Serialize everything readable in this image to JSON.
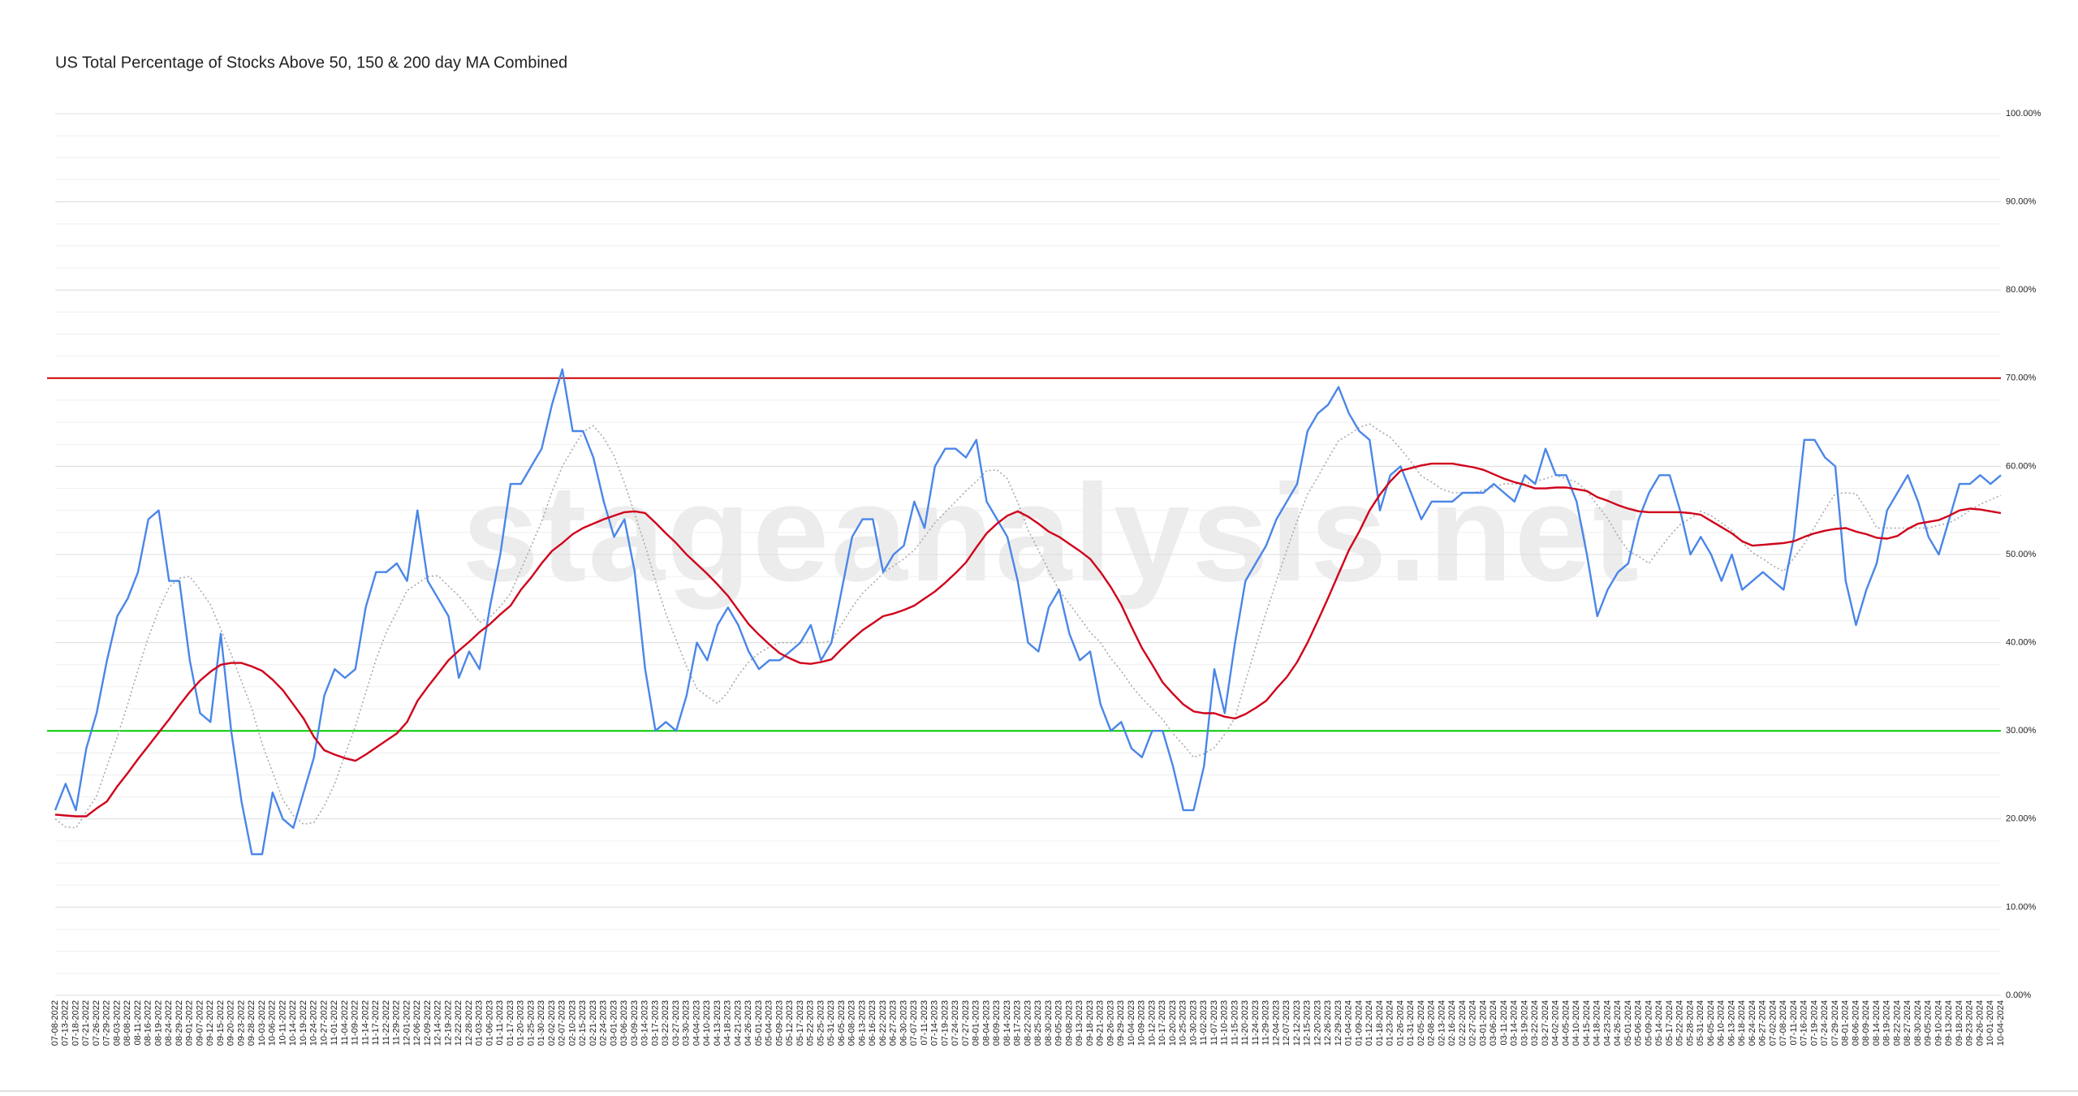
{
  "chart_data": {
    "type": "line",
    "title": "US Total Percentage of Stocks Above 50, 150 & 200 day MA Combined",
    "watermark": "stageanalysis.net",
    "categories": [
      "07-08-2022",
      "07-13-2022",
      "07-18-2022",
      "07-21-2022",
      "07-26-2022",
      "07-29-2022",
      "08-03-2022",
      "08-08-2022",
      "08-11-2022",
      "08-16-2022",
      "08-19-2022",
      "08-24-2022",
      "08-29-2022",
      "09-01-2022",
      "09-07-2022",
      "09-12-2022",
      "09-15-2022",
      "09-20-2022",
      "09-23-2022",
      "09-28-2022",
      "10-03-2022",
      "10-06-2022",
      "10-11-2022",
      "10-14-2022",
      "10-19-2022",
      "10-24-2022",
      "10-27-2022",
      "11-01-2022",
      "11-04-2022",
      "11-09-2022",
      "11-14-2022",
      "11-17-2022",
      "11-22-2022",
      "11-29-2022",
      "12-01-2022",
      "12-06-2022",
      "12-09-2022",
      "12-14-2022",
      "12-19-2022",
      "12-22-2022",
      "12-28-2022",
      "01-03-2023",
      "01-06-2023",
      "01-11-2023",
      "01-17-2023",
      "01-20-2023",
      "01-25-2023",
      "01-30-2023",
      "02-02-2023",
      "02-07-2023",
      "02-10-2023",
      "02-15-2023",
      "02-21-2023",
      "02-24-2023",
      "03-01-2023",
      "03-06-2023",
      "03-09-2023",
      "03-14-2023",
      "03-17-2023",
      "03-22-2023",
      "03-27-2023",
      "03-30-2023",
      "04-04-2023",
      "04-10-2023",
      "04-13-2023",
      "04-18-2023",
      "04-21-2023",
      "04-26-2023",
      "05-01-2023",
      "05-04-2023",
      "05-09-2023",
      "05-12-2023",
      "05-17-2023",
      "05-22-2023",
      "05-25-2023",
      "05-31-2023",
      "06-05-2023",
      "06-08-2023",
      "06-13-2023",
      "06-16-2023",
      "06-22-2023",
      "06-27-2023",
      "06-30-2023",
      "07-07-2023",
      "07-11-2023",
      "07-14-2023",
      "07-19-2023",
      "07-24-2023",
      "07-27-2023",
      "08-01-2023",
      "08-04-2023",
      "08-09-2023",
      "08-14-2023",
      "08-17-2023",
      "08-22-2023",
      "08-25-2023",
      "08-30-2023",
      "09-05-2023",
      "09-08-2023",
      "09-13-2023",
      "09-18-2023",
      "09-21-2023",
      "09-26-2023",
      "09-29-2023",
      "10-04-2023",
      "10-09-2023",
      "10-12-2023",
      "10-17-2023",
      "10-20-2023",
      "10-25-2023",
      "10-30-2023",
      "11-02-2023",
      "11-07-2023",
      "11-10-2023",
      "11-15-2023",
      "11-20-2023",
      "11-24-2023",
      "11-29-2023",
      "12-04-2023",
      "12-07-2023",
      "12-12-2023",
      "12-15-2023",
      "12-20-2023",
      "12-26-2023",
      "12-29-2023",
      "01-04-2024",
      "01-09-2024",
      "01-12-2024",
      "01-18-2024",
      "01-23-2024",
      "01-26-2024",
      "01-31-2024",
      "02-05-2024",
      "02-08-2024",
      "02-13-2024",
      "02-16-2024",
      "02-22-2024",
      "02-27-2024",
      "03-01-2024",
      "03-06-2024",
      "03-11-2024",
      "03-14-2024",
      "03-19-2024",
      "03-22-2024",
      "03-27-2024",
      "04-02-2024",
      "04-05-2024",
      "04-10-2024",
      "04-15-2024",
      "04-18-2024",
      "04-23-2024",
      "04-26-2024",
      "05-01-2024",
      "05-06-2024",
      "05-09-2024",
      "05-14-2024",
      "05-17-2024",
      "05-22-2024",
      "05-28-2024",
      "05-31-2024",
      "06-05-2024",
      "06-10-2024",
      "06-13-2024",
      "06-18-2024",
      "06-24-2024",
      "06-27-2024",
      "07-02-2024",
      "07-08-2024",
      "07-11-2024",
      "07-16-2024",
      "07-19-2024",
      "07-24-2024",
      "07-29-2024",
      "08-01-2024",
      "08-06-2024",
      "08-09-2024",
      "08-14-2024",
      "08-19-2024",
      "08-22-2024",
      "08-27-2024",
      "08-30-2024",
      "09-05-2024",
      "09-10-2024",
      "09-13-2024",
      "09-18-2024",
      "09-23-2024",
      "09-26-2024",
      "10-01-2024",
      "10-04-2024"
    ],
    "series": [
      {
        "color": "#aaaaaa",
        "style": "dotted",
        "values": [
          20,
          19.1,
          19,
          20.8,
          22.6,
          26,
          29.3,
          33,
          36.9,
          40.6,
          43.7,
          46.3,
          47.3,
          47.5,
          46,
          44.3,
          41.5,
          38.7,
          35.6,
          32.5,
          28.5,
          25.3,
          22.2,
          20.4,
          19.4,
          19.6,
          21.5,
          24,
          27.3,
          30.5,
          34.3,
          38.1,
          41.2,
          43.5,
          45.9,
          46.7,
          47.5,
          47.6,
          46.4,
          45.3,
          43.9,
          42.3,
          42.9,
          44.1,
          45.6,
          48.3,
          51,
          53.7,
          57.1,
          60,
          62,
          63.9,
          64.6,
          63.2,
          61.2,
          58.1,
          54.6,
          51,
          47,
          43.3,
          40.3,
          37.3,
          34.8,
          33.9,
          33.1,
          34.4,
          36.3,
          37.8,
          38.8,
          39.5,
          40,
          40,
          40,
          40,
          40,
          40.2,
          42.1,
          44,
          45.6,
          46.7,
          47.9,
          48.7,
          49.5,
          50.5,
          52,
          53.6,
          54.8,
          56,
          57.2,
          58.3,
          59.5,
          59.6,
          58.6,
          55.9,
          52.8,
          50.5,
          48.2,
          45.9,
          44.4,
          42.8,
          41.2,
          40,
          38.2,
          36.8,
          35.1,
          33.7,
          32.5,
          31.3,
          29.7,
          28.4,
          27,
          27.4,
          28.1,
          29.6,
          31.5,
          35.6,
          39.5,
          43.4,
          47,
          50.5,
          53.8,
          56.8,
          58.8,
          60.9,
          62.9,
          63.6,
          64.4,
          64.8,
          64,
          63.3,
          62,
          60.5,
          58.9,
          58.2,
          57.4,
          57,
          57,
          57,
          57.3,
          57.7,
          58,
          58,
          58,
          58.3,
          58.6,
          59,
          58.6,
          58.2,
          57.2,
          55.6,
          54.1,
          52.1,
          50.4,
          49.8,
          49,
          50.6,
          52.1,
          53.4,
          54.1,
          54.9,
          54.4,
          53.6,
          52.7,
          51.4,
          50.2,
          49.5,
          48.7,
          48.1,
          49.6,
          51.2,
          53.1,
          55.1,
          56.9,
          57,
          56.9,
          55.1,
          53,
          53,
          53,
          53,
          53,
          53,
          53.3,
          53.6,
          54.2,
          55,
          55.7,
          56.2,
          56.7
        ]
      },
      {
        "color": "#4a86e8",
        "style": "solid",
        "values": [
          21,
          24,
          21,
          28,
          32,
          38,
          43,
          45,
          48,
          54,
          55,
          47,
          47,
          38,
          32,
          31,
          41,
          30,
          22,
          16,
          16,
          23,
          20,
          19,
          23,
          27,
          34,
          37,
          36,
          37,
          44,
          48,
          48,
          49,
          47,
          55,
          47,
          45,
          43,
          36,
          39,
          37,
          44,
          50,
          58,
          58,
          60,
          62,
          67,
          71,
          64,
          64,
          61,
          56,
          52,
          54,
          48,
          37,
          30,
          31,
          30,
          34,
          40,
          38,
          42,
          44,
          42,
          39,
          37,
          38,
          38,
          39,
          40,
          42,
          38,
          40,
          46,
          52,
          54,
          54,
          48,
          50,
          51,
          56,
          53,
          60,
          62,
          62,
          61,
          63,
          56,
          54,
          52,
          47,
          40,
          39,
          44,
          46,
          41,
          38,
          39,
          33,
          30,
          31,
          28,
          27,
          30,
          30,
          26,
          21,
          21,
          26,
          37,
          32,
          40,
          47,
          49,
          51,
          54,
          56,
          58,
          64,
          66,
          67,
          69,
          66,
          64,
          63,
          55,
          59,
          60,
          57,
          54,
          56,
          56,
          56,
          57,
          57,
          57,
          58,
          57,
          56,
          59,
          58,
          62,
          59,
          59,
          56,
          50,
          43,
          46,
          48,
          49,
          54,
          57,
          59,
          59,
          55,
          50,
          52,
          50,
          47,
          50,
          46,
          47,
          48,
          47,
          46,
          52,
          63,
          63,
          61,
          60,
          47,
          42,
          46,
          49,
          55,
          57,
          59,
          56,
          52,
          50,
          54,
          58,
          58,
          59,
          58,
          59
        ]
      },
      {
        "color": "#d0021b",
        "style": "solid",
        "values": [
          20.5,
          20.4,
          20.3,
          20.3,
          21.2,
          22,
          23.7,
          25.2,
          26.8,
          28.3,
          29.8,
          31.3,
          32.9,
          34.4,
          35.7,
          36.7,
          37.5,
          37.7,
          37.7,
          37.3,
          36.8,
          35.8,
          34.6,
          33,
          31.4,
          29.3,
          27.8,
          27.3,
          26.9,
          26.6,
          27.3,
          28.1,
          28.9,
          29.7,
          31,
          33.4,
          35,
          36.5,
          38,
          39.1,
          40.1,
          41.2,
          42.1,
          43.2,
          44.2,
          46,
          47.4,
          49,
          50.4,
          51.3,
          52.3,
          53,
          53.5,
          54,
          54.4,
          54.8,
          54.9,
          54.7,
          53.6,
          52.4,
          51.3,
          50,
          48.9,
          47.8,
          46.6,
          45.3,
          43.7,
          42.1,
          40.9,
          39.8,
          38.8,
          38.2,
          37.7,
          37.6,
          37.8,
          38.1,
          39.3,
          40.4,
          41.4,
          42.2,
          43,
          43.3,
          43.7,
          44.2,
          45,
          45.8,
          46.8,
          47.9,
          49.1,
          50.8,
          52.4,
          53.5,
          54.4,
          54.9,
          54.3,
          53.5,
          52.6,
          52,
          51.2,
          50.4,
          49.5,
          48,
          46.3,
          44.3,
          41.8,
          39.4,
          37.5,
          35.5,
          34.2,
          33,
          32.2,
          32,
          32,
          31.6,
          31.4,
          31.9,
          32.6,
          33.4,
          34.8,
          36.1,
          37.8,
          40,
          42.5,
          45.1,
          47.8,
          50.5,
          52.6,
          55,
          56.8,
          58.3,
          59.5,
          59.8,
          60.1,
          60.3,
          60.3,
          60.3,
          60.1,
          59.9,
          59.6,
          59.1,
          58.6,
          58.2,
          57.9,
          57.5,
          57.5,
          57.6,
          57.6,
          57.4,
          57.2,
          56.5,
          56.1,
          55.6,
          55.2,
          54.9,
          54.8,
          54.8,
          54.8,
          54.8,
          54.7,
          54.5,
          53.8,
          53.1,
          52.4,
          51.5,
          51,
          51.1,
          51.2,
          51.3,
          51.5,
          52,
          52.4,
          52.7,
          52.9,
          53,
          52.6,
          52.3,
          51.9,
          51.8,
          52.1,
          52.9,
          53.5,
          53.7,
          53.9,
          54.4,
          55,
          55.2,
          55.1,
          54.9,
          54.7
        ]
      }
    ],
    "reference_lines": [
      {
        "value": 70,
        "color": "#cc0000"
      },
      {
        "value": 30,
        "color": "#00cc00"
      }
    ],
    "ylim": [
      0,
      100
    ],
    "yticks": [
      {
        "value": 0,
        "label": "0.00%"
      },
      {
        "value": 10,
        "label": "10.00%"
      },
      {
        "value": 20,
        "label": "20.00%"
      },
      {
        "value": 30,
        "label": "30.00%"
      },
      {
        "value": 40,
        "label": "40.00%"
      },
      {
        "value": 50,
        "label": "50.00%"
      },
      {
        "value": 60,
        "label": "60.00%"
      },
      {
        "value": 70,
        "label": "70.00%"
      },
      {
        "value": 80,
        "label": "80.00%"
      },
      {
        "value": 90,
        "label": "90.00%"
      },
      {
        "value": 100,
        "label": "100.00%"
      }
    ],
    "minor_yticks": [
      2.5,
      5,
      7.5,
      12.5,
      15,
      17.5,
      22.5,
      25,
      27.5,
      32.5,
      35,
      37.5,
      42.5,
      45,
      47.5,
      52.5,
      55,
      57.5,
      62.5,
      65,
      67.5,
      72.5,
      75,
      77.5,
      82.5,
      85,
      87.5,
      92.5,
      95,
      97.5
    ],
    "grid": true
  }
}
